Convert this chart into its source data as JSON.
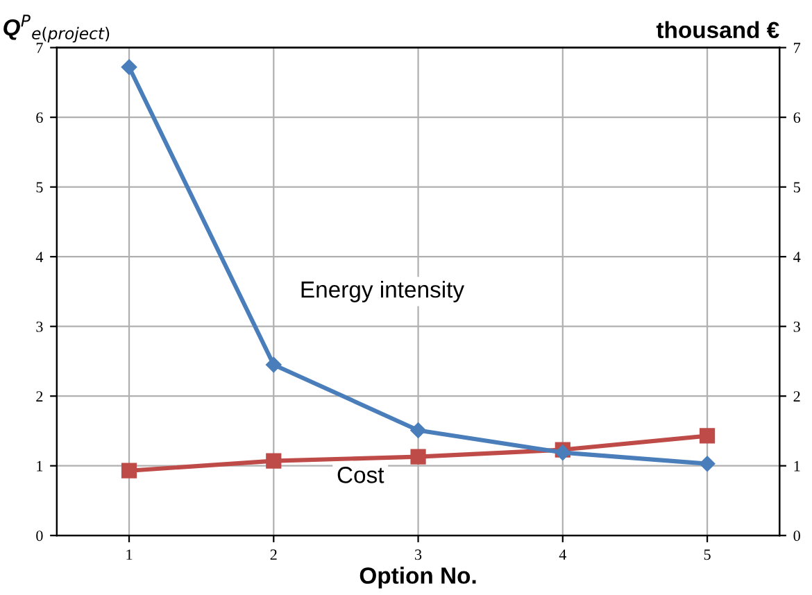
{
  "chart_data": {
    "type": "line",
    "xlabel": "Option No.",
    "ylabel": "Q$^{P}$$_{e(project)}$",
    "y2label": "thousand €",
    "x": [
      1,
      2,
      3,
      4,
      5
    ],
    "series": [
      {
        "name": "Energy intensity",
        "color": "#4a7ebb",
        "values": [
          6.72,
          2.45,
          1.51,
          1.19,
          1.03
        ],
        "marker": "diamond"
      },
      {
        "name": "Cost",
        "color": "#be4b48",
        "values": [
          0.93,
          1.07,
          1.13,
          1.23,
          1.43
        ],
        "marker": "square"
      }
    ],
    "xlim": [
      0.5,
      5.5
    ],
    "xticks": [
      1,
      2,
      3,
      4,
      5
    ],
    "ylim": [
      0,
      7
    ],
    "yticks": [
      0,
      1,
      2,
      3,
      4,
      5,
      6,
      7
    ],
    "y2lim": [
      0,
      7
    ],
    "y2ticks": [
      0,
      1,
      2,
      3,
      4,
      5,
      6,
      7
    ],
    "grid": true,
    "legend": false,
    "line_style": "solid"
  }
}
